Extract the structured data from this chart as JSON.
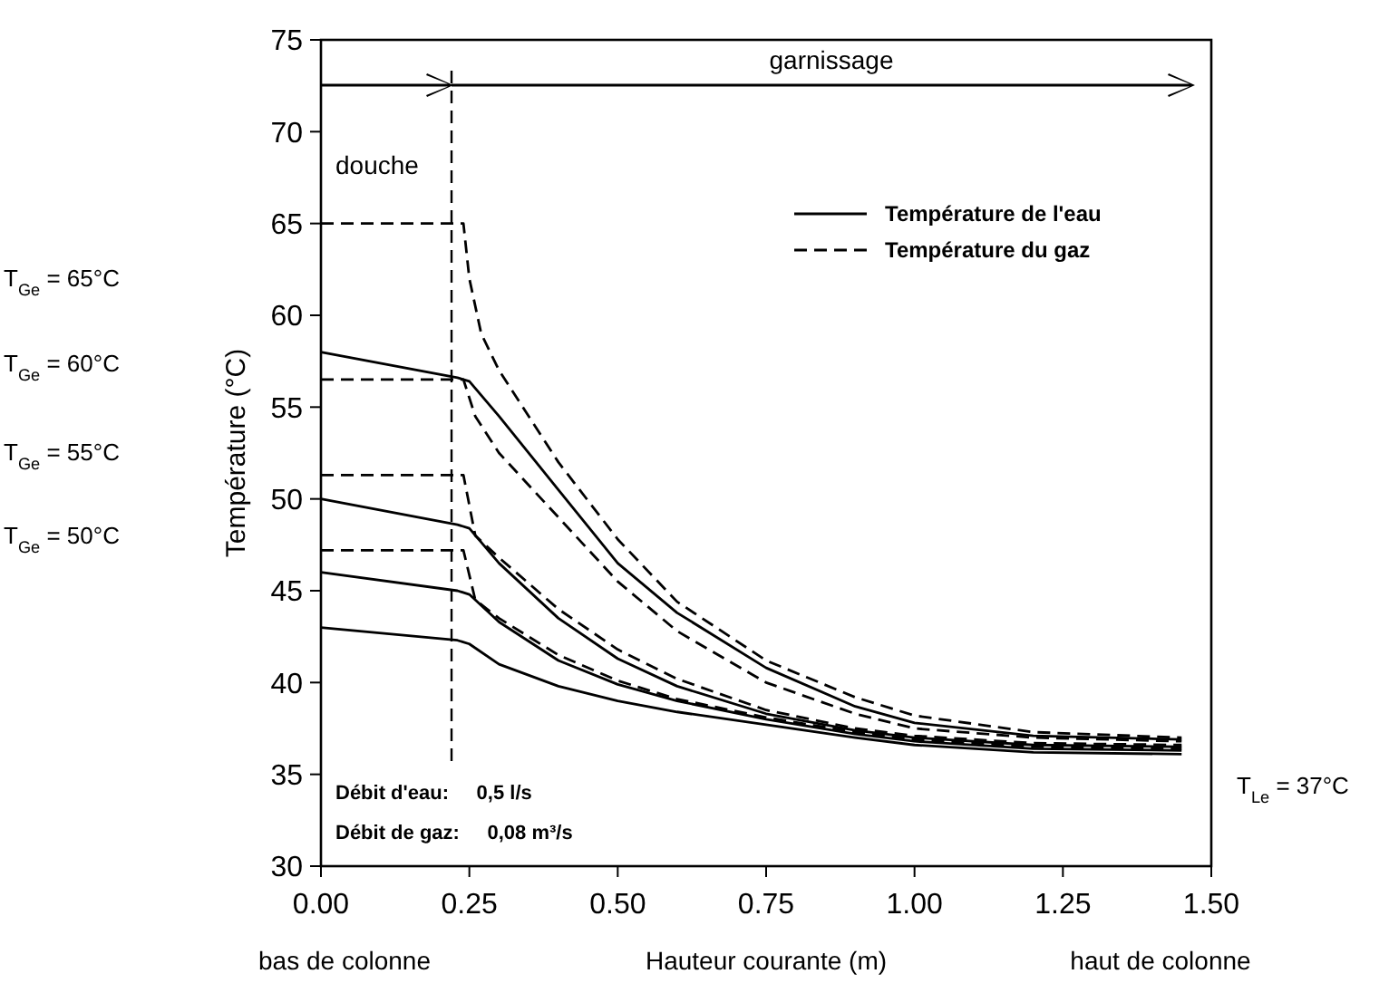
{
  "chart_data": {
    "type": "line",
    "xlabel": "Hauteur courante (m)",
    "ylabel": "Température (°C)",
    "xlim": [
      0,
      1.5
    ],
    "ylim": [
      30,
      75
    ],
    "xticks": [
      {
        "value": 0,
        "label": "0.00"
      },
      {
        "value": 0.25,
        "label": "0.25"
      },
      {
        "value": 0.5,
        "label": "0.50"
      },
      {
        "value": 0.75,
        "label": "0.75"
      },
      {
        "value": 1,
        "label": "1.00"
      },
      {
        "value": 1.25,
        "label": "1.25"
      },
      {
        "value": 1.5,
        "label": "1.50"
      }
    ],
    "yticks": [
      30,
      35,
      40,
      45,
      50,
      55,
      60,
      65,
      70,
      75
    ],
    "legend": "top right",
    "grid": false,
    "marker": "none",
    "series": [
      {
        "name": "Température de l'eau",
        "color": "#000000",
        "line_style": "solid",
        "x": [
          0,
          0.23,
          0.25,
          0.3,
          0.4,
          0.5,
          0.6,
          0.75,
          0.9,
          1.0,
          1.2,
          1.45
        ],
        "values": [
          58,
          56.6,
          56.4,
          54.5,
          50.5,
          46.5,
          43.8,
          40.8,
          38.7,
          37.8,
          37.1,
          36.9
        ]
      },
      {
        "color": "#000000",
        "line_style": "solid",
        "x": [
          0,
          0.23,
          0.25,
          0.3,
          0.4,
          0.5,
          0.6,
          0.75,
          0.9,
          1.0,
          1.2,
          1.45
        ],
        "values": [
          50,
          48.6,
          48.4,
          46.5,
          43.5,
          41.3,
          39.8,
          38.3,
          37.4,
          37.0,
          36.6,
          36.5
        ]
      },
      {
        "color": "#000000",
        "line_style": "solid",
        "x": [
          0,
          0.23,
          0.25,
          0.3,
          0.4,
          0.5,
          0.6,
          0.75,
          0.9,
          1.0,
          1.2,
          1.45
        ],
        "values": [
          46,
          45,
          44.8,
          43.3,
          41.2,
          39.9,
          39,
          38,
          37.2,
          36.8,
          36.4,
          36.3
        ]
      },
      {
        "color": "#000000",
        "line_style": "solid",
        "x": [
          0,
          0.23,
          0.25,
          0.3,
          0.4,
          0.5,
          0.6,
          0.75,
          0.9,
          1.0,
          1.2,
          1.45
        ],
        "values": [
          43,
          42.3,
          42.1,
          41,
          39.8,
          39,
          38.4,
          37.7,
          37,
          36.6,
          36.2,
          36.1
        ]
      },
      {
        "name": "Température du gaz",
        "color": "#000000",
        "line_style": "dashed",
        "x": [
          0,
          0.24,
          0.25,
          0.27,
          0.3,
          0.4,
          0.5,
          0.6,
          0.75,
          0.9,
          1.0,
          1.2,
          1.45
        ],
        "values": [
          65,
          65,
          62,
          59,
          57,
          52,
          47.8,
          44.4,
          41.2,
          39.2,
          38.2,
          37.3,
          37.0
        ]
      },
      {
        "color": "#000000",
        "line_style": "dashed",
        "x": [
          0,
          0.24,
          0.26,
          0.3,
          0.4,
          0.5,
          0.6,
          0.75,
          0.9,
          1.0,
          1.2,
          1.45
        ],
        "values": [
          56.5,
          56.5,
          54.5,
          52.5,
          49,
          45.5,
          42.8,
          40,
          38.3,
          37.5,
          37.0,
          36.8
        ]
      },
      {
        "color": "#000000",
        "line_style": "dashed",
        "x": [
          0,
          0.24,
          0.26,
          0.3,
          0.4,
          0.5,
          0.6,
          0.75,
          0.9,
          1.0,
          1.2,
          1.45
        ],
        "values": [
          51.3,
          51.3,
          48,
          46.8,
          44,
          41.8,
          40.2,
          38.5,
          37.5,
          37.1,
          36.7,
          36.6
        ]
      },
      {
        "color": "#000000",
        "line_style": "dashed",
        "x": [
          0,
          0.24,
          0.26,
          0.3,
          0.4,
          0.5,
          0.6,
          0.75,
          0.9,
          1.0,
          1.2,
          1.45
        ],
        "values": [
          47.2,
          47.2,
          44.5,
          43.5,
          41.5,
          40.1,
          39.1,
          38.1,
          37.3,
          36.9,
          36.5,
          36.4
        ]
      }
    ],
    "ref_lines": [
      {
        "axis": "x",
        "value": 0.22,
        "line_style": "dashed",
        "color": "#000000"
      }
    ],
    "annotations": [
      "douche",
      "garnissage",
      "T$_{Ge}$ = 65°C",
      "T$_{Ge}$ = 60°C",
      "T$_{Ge}$ = 55°C",
      "T$_{Ge}$ = 50°C",
      "T$_{Le}$ = 37°C",
      "bas de colonne",
      "haut de colonne",
      "Débit d'eau:     0,5 l/s",
      "Débit de gaz:     0,08 m³/s"
    ]
  }
}
